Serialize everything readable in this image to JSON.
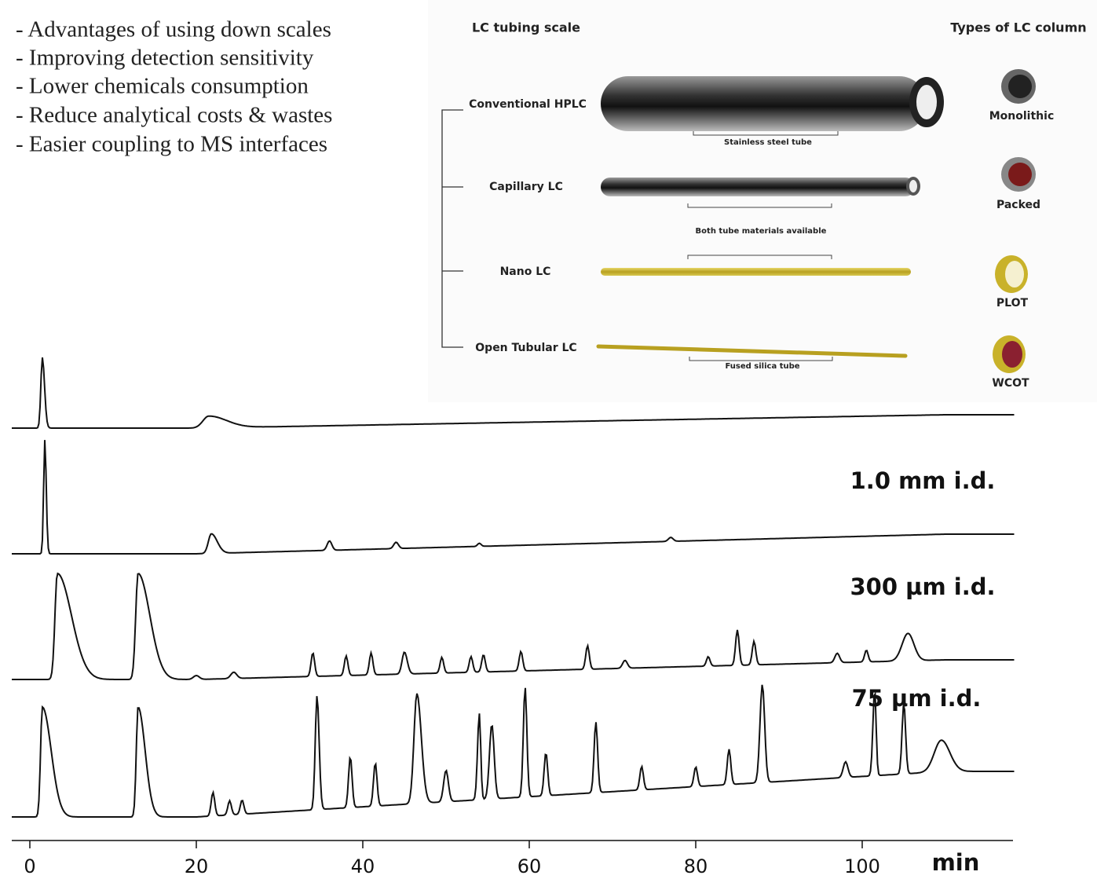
{
  "bullets": [
    "- Advantages of using down scales",
    "- Improving detection sensitivity",
    "- Lower chemicals consumption",
    "- Reduce analytical costs & wastes",
    "- Easier coupling to MS interfaces"
  ],
  "diagram": {
    "left_header": "LC tubing scale",
    "right_header": "Types of LC column",
    "rows": [
      {
        "label": "Conventional HPLC",
        "column": "Monolithic"
      },
      {
        "label": "Capillary LC",
        "column": "Packed"
      },
      {
        "label": "Nano LC",
        "column": "PLOT"
      },
      {
        "label": "Open Tubular LC",
        "column": "WCOT"
      }
    ],
    "notes": [
      "Stainless steel tube",
      "Both tube materials available",
      "Fused silica tube"
    ]
  },
  "chromatograms": {
    "trace_labels": [
      "1.0 mm i.d.",
      "300 µm i.d.",
      "75 µm i.d."
    ],
    "axis": {
      "ticks": [
        0,
        20,
        40,
        60,
        80,
        100
      ],
      "unit": "min"
    }
  }
}
